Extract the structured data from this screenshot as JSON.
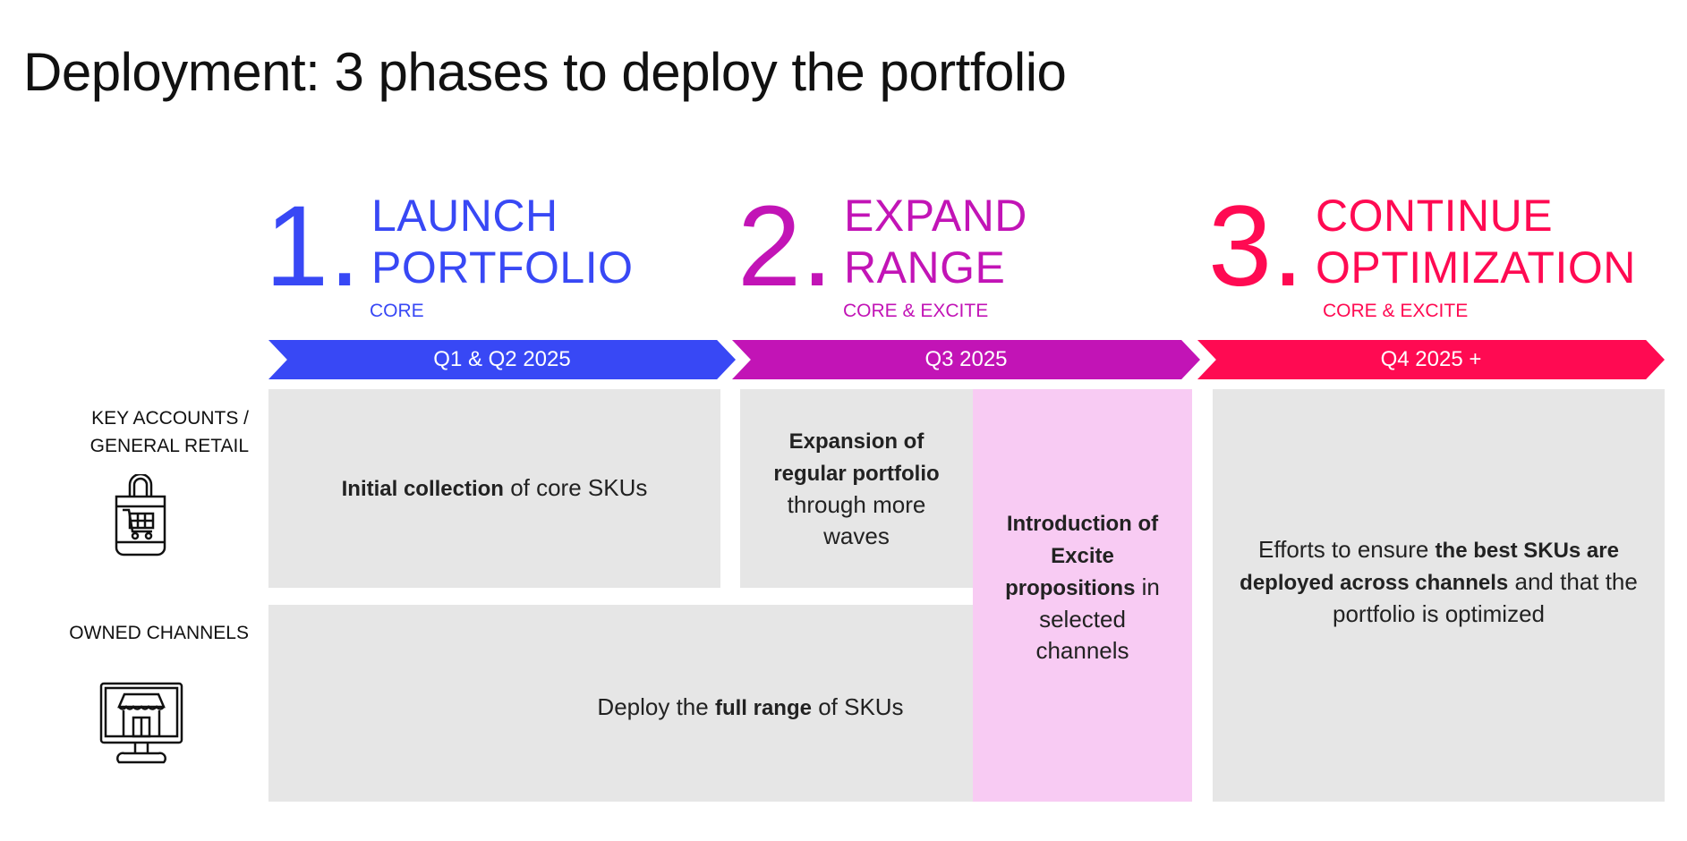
{
  "title": {
    "bold": "Deployment",
    "rest": ": 3 phases to deploy the portfolio"
  },
  "colors": {
    "phase1": "#3848f5",
    "phase2": "#c214b6",
    "phase3": "#ff0a52",
    "box": "#e6e6e6",
    "highlight": "#f8cbf3"
  },
  "phases": [
    {
      "number": "1.",
      "line1": "LAUNCH",
      "line2": "PORTFOLIO",
      "subtitle": "CORE",
      "period": "Q1 & Q2 2025"
    },
    {
      "number": "2.",
      "line1": "EXPAND",
      "line2": "RANGE",
      "subtitle": "CORE & EXCITE",
      "period": "Q3 2025"
    },
    {
      "number": "3.",
      "line1": "CONTINUE",
      "line2": "OPTIMIZATION",
      "subtitle": "CORE & EXCITE",
      "period": "Q4 2025 +"
    }
  ],
  "rows": [
    {
      "label1": "KEY ACCOUNTS /",
      "label2": "GENERAL RETAIL",
      "icon": "shopping-bag-cart-icon"
    },
    {
      "label1": "OWNED CHANNELS",
      "icon": "monitor-storefront-icon"
    }
  ],
  "cells": {
    "initial": {
      "bold": "Initial collection",
      "rest": " of core SKUs"
    },
    "expansion": {
      "bold": "Expansion of regular portfolio",
      "rest": " through more waves"
    },
    "deploy": {
      "pre": "Deploy the ",
      "bold": "full range",
      "rest": " of SKUs"
    },
    "excite": {
      "bold": "Introduction of Excite propositions",
      "rest": " in selected channels"
    },
    "efforts": {
      "pre": "Efforts to ensure ",
      "bold": "the best SKUs are deployed across channels",
      "rest": " and that the portfolio is optimized"
    }
  }
}
